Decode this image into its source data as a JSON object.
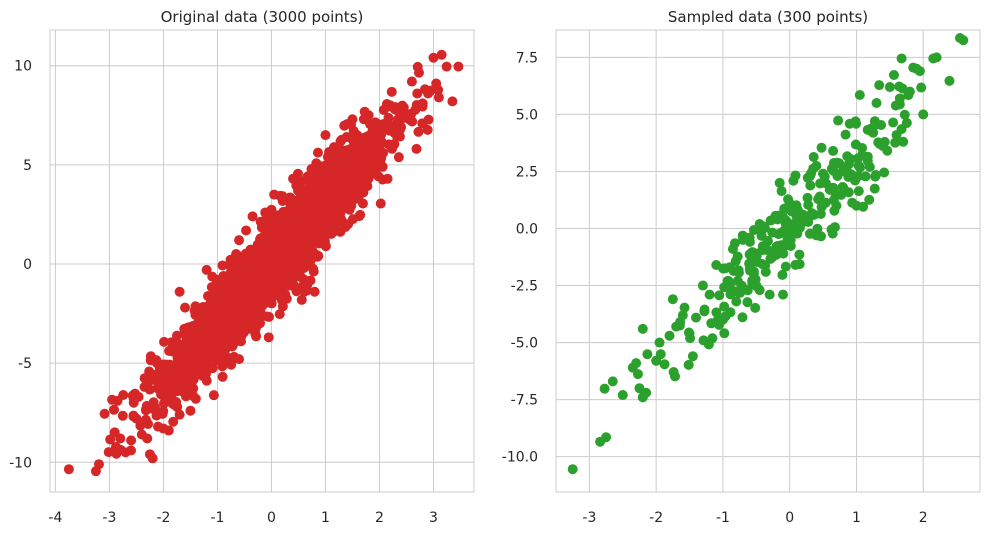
{
  "chart_data": [
    {
      "type": "scatter",
      "title": "Original data (3000 points)",
      "xlabel": "",
      "ylabel": "",
      "xlim": [
        -4.1,
        3.75
      ],
      "ylim": [
        -11.5,
        11.8
      ],
      "xticks": [
        -4,
        -3,
        -2,
        -1,
        0,
        1,
        2,
        3
      ],
      "xtick_labels": [
        "-4",
        "-3",
        "-2",
        "-1",
        "0",
        "1",
        "2",
        "3"
      ],
      "yticks": [
        -10,
        -5,
        0,
        5,
        10
      ],
      "ytick_labels": [
        "-10",
        "-5",
        "0",
        "5",
        "10"
      ],
      "grid": true,
      "color": "#d62728",
      "n_points": 3000,
      "distribution": {
        "slope": 3,
        "noise_sd": 1
      },
      "series": [
        {
          "values": [
            [
              -3.75,
              -10.35
            ],
            [
              -3.25,
              -10.45
            ],
            [
              -2.95,
              -6.85
            ],
            [
              -2.85,
              -6.9
            ],
            [
              -2.8,
              -8.8
            ],
            [
              -2.7,
              -9.5
            ],
            [
              -2.6,
              -9.4
            ],
            [
              -2.5,
              -7.8
            ],
            [
              -2.4,
              -8.6
            ],
            [
              -2.3,
              -8.8
            ],
            [
              -2.25,
              -9.6
            ],
            [
              -2.2,
              -9.8
            ],
            [
              -2.1,
              -8.2
            ],
            [
              -2.0,
              -8.3
            ],
            [
              -1.9,
              -8.4
            ],
            [
              -1.85,
              -5.6
            ],
            [
              -1.8,
              -7.1
            ],
            [
              -1.7,
              -7.6
            ],
            [
              -1.6,
              -5.0
            ],
            [
              -1.5,
              -7.4
            ],
            [
              -1.45,
              -3.5
            ],
            [
              -1.4,
              -6.8
            ],
            [
              -1.65,
              -4.6
            ],
            [
              -1.75,
              -4.2
            ],
            [
              -1.7,
              -1.4
            ],
            [
              -1.6,
              -2.2
            ],
            [
              -1.2,
              -3.8
            ],
            [
              -1.0,
              -2.1
            ],
            [
              -1.2,
              -0.3
            ],
            [
              -0.95,
              -1.6
            ],
            [
              -0.6,
              1.2
            ],
            [
              -0.55,
              0.35
            ],
            [
              -0.35,
              2.4
            ],
            [
              -0.2,
              1.3
            ],
            [
              0.05,
              3.5
            ],
            [
              0.2,
              2.0
            ],
            [
              0.4,
              4.3
            ],
            [
              0.6,
              3.7
            ],
            [
              1.0,
              6.5
            ],
            [
              1.1,
              2.8
            ],
            [
              1.3,
              2.2
            ],
            [
              1.4,
              3.6
            ],
            [
              1.5,
              7.3
            ],
            [
              1.6,
              5.6
            ],
            [
              1.8,
              7.5
            ],
            [
              1.9,
              5.0
            ],
            [
              2.0,
              5.9
            ],
            [
              2.1,
              7.0
            ],
            [
              2.2,
              8.0
            ],
            [
              2.3,
              7.9
            ],
            [
              2.4,
              6.9
            ],
            [
              2.55,
              7.3
            ],
            [
              2.6,
              9.2
            ],
            [
              2.7,
              8.6
            ],
            [
              2.8,
              8.1
            ],
            [
              2.9,
              8.6
            ],
            [
              3.0,
              10.4
            ],
            [
              3.15,
              10.55
            ],
            [
              3.05,
              9.1
            ],
            [
              3.1,
              8.4
            ],
            [
              3.35,
              8.2
            ],
            [
              2.45,
              7.9
            ],
            [
              2.15,
              4.3
            ],
            [
              0.8,
              -1.4
            ],
            [
              0.6,
              -0.2
            ],
            [
              -0.05,
              -3.7
            ],
            [
              -0.6,
              -4.8
            ],
            [
              -0.9,
              -5.1
            ],
            [
              -0.3,
              -3.5
            ],
            [
              0.35,
              0.7
            ],
            [
              -2.35,
              -6.2
            ],
            [
              -2.55,
              -7.0
            ]
          ]
        }
      ]
    },
    {
      "type": "scatter",
      "title": "Sampled data (300 points)",
      "xlabel": "",
      "ylabel": "",
      "xlim": [
        -3.5,
        2.85
      ],
      "ylim": [
        -11.55,
        8.7
      ],
      "xticks": [
        -3,
        -2,
        -1,
        0,
        1,
        2
      ],
      "xtick_labels": [
        "-3",
        "-2",
        "-1",
        "0",
        "1",
        "2"
      ],
      "yticks": [
        -10,
        -7.5,
        -5,
        -2.5,
        0,
        2.5,
        5,
        7.5
      ],
      "ytick_labels": [
        "-10.0",
        "-7.5",
        "-5.0",
        "-2.5",
        "0.0",
        "2.5",
        "5.0",
        "7.5"
      ],
      "grid": true,
      "color": "#2ca02c",
      "n_points": 300,
      "distribution": {
        "slope": 3,
        "noise_sd": 1
      },
      "series": [
        {
          "values": [
            [
              -3.25,
              -10.55
            ],
            [
              -2.75,
              -9.15
            ],
            [
              -2.65,
              -6.7
            ],
            [
              -2.5,
              -7.3
            ],
            [
              -2.35,
              -6.1
            ],
            [
              -2.3,
              -5.9
            ],
            [
              -2.25,
              -7.0
            ],
            [
              -2.2,
              -7.4
            ],
            [
              -2.2,
              -4.4
            ],
            [
              -2.15,
              -7.2
            ],
            [
              -2.0,
              -5.8
            ],
            [
              -1.95,
              -5.0
            ],
            [
              -1.8,
              -4.7
            ],
            [
              -1.75,
              -3.1
            ],
            [
              -1.7,
              -4.3
            ],
            [
              -1.6,
              -3.8
            ],
            [
              -1.5,
              -4.6
            ],
            [
              -1.45,
              -5.6
            ],
            [
              -1.3,
              -2.5
            ],
            [
              -1.1,
              -1.6
            ],
            [
              -0.85,
              -0.9
            ],
            [
              -0.7,
              -0.5
            ],
            [
              -0.45,
              -2.7
            ],
            [
              -0.3,
              -2.9
            ],
            [
              -0.15,
              2.0
            ],
            [
              -0.1,
              -2.9
            ],
            [
              0.0,
              1.1
            ],
            [
              0.1,
              0.3
            ],
            [
              0.4,
              -0.3
            ],
            [
              0.45,
              1.4
            ],
            [
              0.6,
              1.7
            ],
            [
              0.65,
              3.4
            ],
            [
              0.7,
              1.0
            ],
            [
              0.85,
              2.6
            ],
            [
              1.0,
              1.0
            ],
            [
              1.1,
              0.95
            ],
            [
              1.05,
              5.85
            ],
            [
              1.2,
              2.7
            ],
            [
              1.25,
              4.2
            ],
            [
              1.3,
              5.5
            ],
            [
              1.35,
              3.7
            ],
            [
              1.5,
              6.2
            ],
            [
              1.6,
              4.1
            ],
            [
              1.65,
              5.7
            ],
            [
              1.7,
              3.8
            ],
            [
              1.8,
              6.0
            ],
            [
              1.95,
              6.9
            ],
            [
              2.0,
              5.0
            ],
            [
              2.15,
              7.45
            ],
            [
              2.2,
              7.5
            ],
            [
              1.85,
              7.05
            ],
            [
              1.9,
              7.0
            ],
            [
              2.55,
              8.35
            ],
            [
              2.6,
              8.25
            ],
            [
              -1.0,
              -4.0
            ],
            [
              -0.8,
              -3.2
            ],
            [
              -0.5,
              -1.2
            ],
            [
              -0.2,
              -0.8
            ],
            [
              0.2,
              0.6
            ],
            [
              0.3,
              2.3
            ],
            [
              -1.2,
              -2.9
            ],
            [
              -0.9,
              -1.7
            ],
            [
              -0.6,
              -0.4
            ],
            [
              -0.4,
              0.1
            ],
            [
              0.5,
              2.4
            ],
            [
              0.8,
              1.8
            ]
          ]
        }
      ]
    }
  ]
}
